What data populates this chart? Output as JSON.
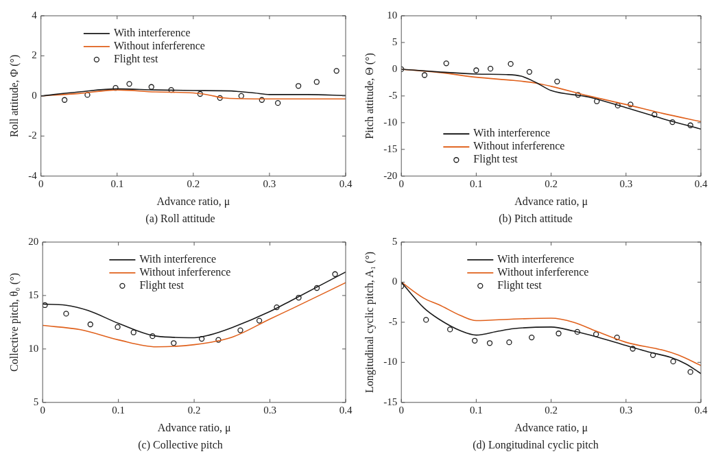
{
  "chart_data": [
    {
      "type": "line",
      "ylabel": "Roll attitude, Φ (°)",
      "xlabel": "Advance ratio, μ",
      "annotations": [
        "(a) Roll attitude"
      ],
      "xlim": [
        0,
        0.4
      ],
      "xticks": [
        0,
        0.1,
        0.2,
        0.3,
        0.4
      ],
      "ylim": [
        -4,
        4
      ],
      "yticks": [
        -4,
        -2,
        0,
        2,
        4
      ],
      "grid": false,
      "legend": "top left",
      "series": [
        {
          "name": "With interference",
          "color": "#1a1a1a",
          "type": "line",
          "marker": "none",
          "x": [
            0,
            0.05,
            0.1,
            0.15,
            0.2,
            0.25,
            0.26,
            0.28,
            0.3,
            0.35,
            0.4
          ],
          "values": [
            0,
            0.2,
            0.35,
            0.3,
            0.27,
            0.25,
            0.22,
            0.15,
            0.07,
            0.07,
            0.02
          ]
        },
        {
          "name": "Without inferference",
          "color": "#e0601b",
          "type": "line",
          "marker": "none",
          "x": [
            0,
            0.05,
            0.1,
            0.15,
            0.2,
            0.22,
            0.24,
            0.28,
            0.32,
            0.4
          ],
          "values": [
            0,
            0.12,
            0.3,
            0.2,
            0.15,
            0.05,
            -0.1,
            -0.15,
            -0.15,
            -0.15
          ]
        },
        {
          "name": "Flight test",
          "color": "#1a1a1a",
          "type": "scatter",
          "marker": "circle",
          "x": [
            0.031,
            0.061,
            0.098,
            0.116,
            0.145,
            0.171,
            0.209,
            0.235,
            0.263,
            0.29,
            0.311,
            0.338,
            0.362,
            0.388
          ],
          "values": [
            -0.2,
            0.05,
            0.4,
            0.6,
            0.45,
            0.3,
            0.1,
            -0.1,
            0,
            -0.2,
            -0.35,
            0.5,
            0.7,
            1.25
          ]
        }
      ]
    },
    {
      "type": "line",
      "ylabel": "Pitch attitude, Θ (°)",
      "xlabel": "Advance ratio, μ",
      "annotations": [
        "(b) Pitch attitude"
      ],
      "xlim": [
        0,
        0.4
      ],
      "xticks": [
        0,
        0.1,
        0.2,
        0.3,
        0.4
      ],
      "ylim": [
        -20,
        10
      ],
      "yticks": [
        -20,
        -15,
        -10,
        -5,
        0,
        5,
        10
      ],
      "grid": false,
      "legend": "bottom left",
      "series": [
        {
          "name": "With interference",
          "color": "#1a1a1a",
          "type": "line",
          "marker": "none",
          "x": [
            0,
            0.05,
            0.1,
            0.14,
            0.16,
            0.18,
            0.2,
            0.25,
            0.3,
            0.35,
            0.4
          ],
          "values": [
            0,
            -0.5,
            -0.9,
            -1,
            -1.3,
            -2.5,
            -4,
            -5.2,
            -7.2,
            -9.3,
            -11.2
          ]
        },
        {
          "name": "Without inferference",
          "color": "#e0601b",
          "type": "line",
          "marker": "none",
          "x": [
            0,
            0.05,
            0.1,
            0.15,
            0.18,
            0.2,
            0.25,
            0.3,
            0.35,
            0.4
          ],
          "values": [
            0,
            -0.6,
            -1.5,
            -2.1,
            -2.6,
            -3.2,
            -5,
            -6.6,
            -8.3,
            -9.8
          ]
        },
        {
          "name": "Flight test",
          "color": "#1a1a1a",
          "type": "scatter",
          "marker": "circle",
          "x": [
            0,
            0.031,
            0.06,
            0.1,
            0.119,
            0.146,
            0.171,
            0.208,
            0.236,
            0.261,
            0.289,
            0.306,
            0.338,
            0.362,
            0.386
          ],
          "values": [
            0,
            -1.1,
            1.1,
            -0.2,
            0.1,
            1,
            -0.5,
            -2.3,
            -4.8,
            -6,
            -6.8,
            -6.6,
            -8.5,
            -9.9,
            -10.5
          ]
        }
      ]
    },
    {
      "type": "line",
      "ylabel": "Collective pitch, θ₀ (°)",
      "xlabel": "Advance ratio, μ",
      "annotations": [
        "(c) Collective pitch"
      ],
      "xlim": [
        0,
        0.4
      ],
      "xticks": [
        0,
        0.1,
        0.2,
        0.3,
        0.4
      ],
      "ylim": [
        5,
        20
      ],
      "yticks": [
        5,
        10,
        15,
        20
      ],
      "grid": false,
      "legend": "top",
      "series": [
        {
          "name": "With interference",
          "color": "#1a1a1a",
          "type": "line",
          "marker": "none",
          "x": [
            0,
            0.03,
            0.06,
            0.1,
            0.15,
            0.2,
            0.22,
            0.25,
            0.3,
            0.33,
            0.4
          ],
          "values": [
            14.2,
            14.1,
            13.6,
            12.4,
            11.2,
            11.05,
            11.3,
            12,
            13.5,
            14.6,
            17.2
          ]
        },
        {
          "name": "Without inferference",
          "color": "#e0601b",
          "type": "line",
          "marker": "none",
          "x": [
            0,
            0.05,
            0.1,
            0.15,
            0.2,
            0.25,
            0.3,
            0.33,
            0.4
          ],
          "values": [
            12.2,
            11.8,
            10.85,
            10.2,
            10.4,
            11.1,
            12.8,
            13.8,
            16.2
          ]
        },
        {
          "name": "Flight test",
          "color": "#1a1a1a",
          "type": "scatter",
          "marker": "circle",
          "x": [
            0.003,
            0.031,
            0.063,
            0.099,
            0.12,
            0.145,
            0.173,
            0.21,
            0.232,
            0.261,
            0.286,
            0.309,
            0.338,
            0.362,
            0.386
          ],
          "values": [
            14.1,
            13.3,
            12.3,
            12.05,
            11.55,
            11.2,
            10.55,
            10.95,
            10.85,
            11.75,
            12.65,
            13.9,
            14.8,
            15.7,
            17
          ]
        }
      ]
    },
    {
      "type": "line",
      "ylabel": "Longitudinal cyclic pitch, A₁ (°)",
      "xlabel": "Advance ratio, μ",
      "annotations": [
        "(d) Longitudinal cyclic pitch"
      ],
      "xlim": [
        0,
        0.4
      ],
      "xticks": [
        0,
        0.1,
        0.2,
        0.3,
        0.4
      ],
      "ylim": [
        -15,
        5
      ],
      "yticks": [
        -15,
        -10,
        -5,
        0,
        5
      ],
      "grid": false,
      "legend": "top",
      "series": [
        {
          "name": "With interference",
          "color": "#1a1a1a",
          "type": "line",
          "marker": "none",
          "x": [
            0,
            0.03,
            0.05,
            0.08,
            0.1,
            0.13,
            0.15,
            0.2,
            0.23,
            0.26,
            0.3,
            0.33,
            0.36,
            0.38,
            0.4
          ],
          "values": [
            0,
            -3.2,
            -4.6,
            -6.1,
            -6.6,
            -6.1,
            -5.8,
            -5.6,
            -6.1,
            -6.8,
            -7.9,
            -8.7,
            -9.4,
            -10.2,
            -11.4
          ]
        },
        {
          "name": "Without inferference",
          "color": "#e0601b",
          "type": "line",
          "marker": "none",
          "x": [
            0,
            0.03,
            0.05,
            0.08,
            0.1,
            0.15,
            0.2,
            0.23,
            0.26,
            0.3,
            0.35,
            0.37,
            0.4
          ],
          "values": [
            0,
            -2,
            -2.8,
            -4.2,
            -4.8,
            -4.6,
            -4.5,
            -5,
            -6.1,
            -7.5,
            -8.5,
            -9.1,
            -10.4
          ]
        },
        {
          "name": "Flight test",
          "color": "#1a1a1a",
          "type": "scatter",
          "marker": "circle",
          "x": [
            0,
            0.033,
            0.065,
            0.098,
            0.118,
            0.144,
            0.174,
            0.21,
            0.235,
            0.26,
            0.288,
            0.309,
            0.336,
            0.363,
            0.386
          ],
          "values": [
            -0.5,
            -4.7,
            -5.9,
            -7.3,
            -7.6,
            -7.5,
            -6.9,
            -6.4,
            -6.2,
            -6.5,
            -6.9,
            -8.3,
            -9.1,
            -9.9,
            -11.2
          ]
        }
      ]
    }
  ]
}
